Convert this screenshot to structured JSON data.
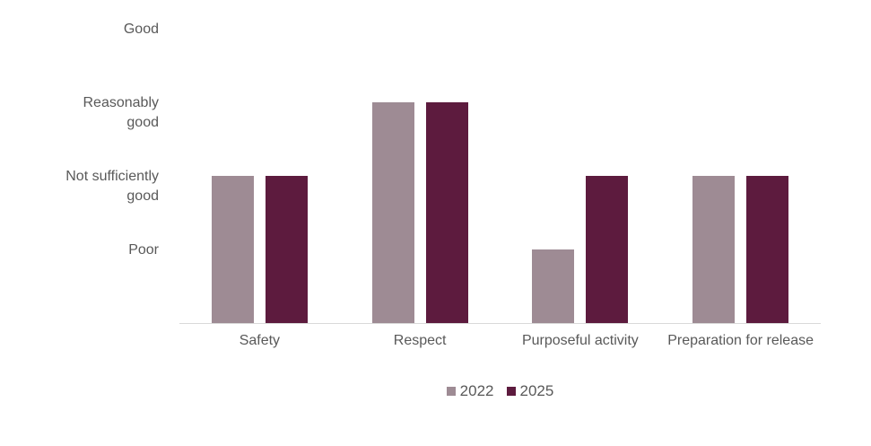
{
  "chart_data": {
    "type": "bar",
    "categories": [
      "Safety",
      "Respect",
      "Purposeful activity",
      "Preparation for release"
    ],
    "series": [
      {
        "name": "2022",
        "color": "#9e8b94",
        "values": [
          2,
          3,
          1,
          2
        ],
        "ratings": [
          "Not sufficiently good",
          "Reasonably good",
          "Poor",
          "Not sufficiently good"
        ]
      },
      {
        "name": "2025",
        "color": "#5d1b3e",
        "values": [
          2,
          3,
          2,
          2
        ],
        "ratings": [
          "Not sufficiently good",
          "Reasonably good",
          "Not sufficiently good",
          "Not sufficiently good"
        ]
      }
    ],
    "y_ticks": [
      {
        "value": 4,
        "label": "Good"
      },
      {
        "value": 3,
        "label": "Reasonably good"
      },
      {
        "value": 2,
        "label": "Not sufficiently good"
      },
      {
        "value": 1,
        "label": "Poor"
      }
    ],
    "rating_scale": {
      "1": "Poor",
      "2": "Not sufficiently good",
      "3": "Reasonably good",
      "4": "Good"
    },
    "title": "",
    "xlabel": "",
    "ylabel": "",
    "ylim": [
      0,
      4
    ],
    "grid": false,
    "legend_position": "bottom-center",
    "colors": {
      "axis_line": "#d9d9d9",
      "text": "#595959",
      "background": "#ffffff"
    }
  }
}
